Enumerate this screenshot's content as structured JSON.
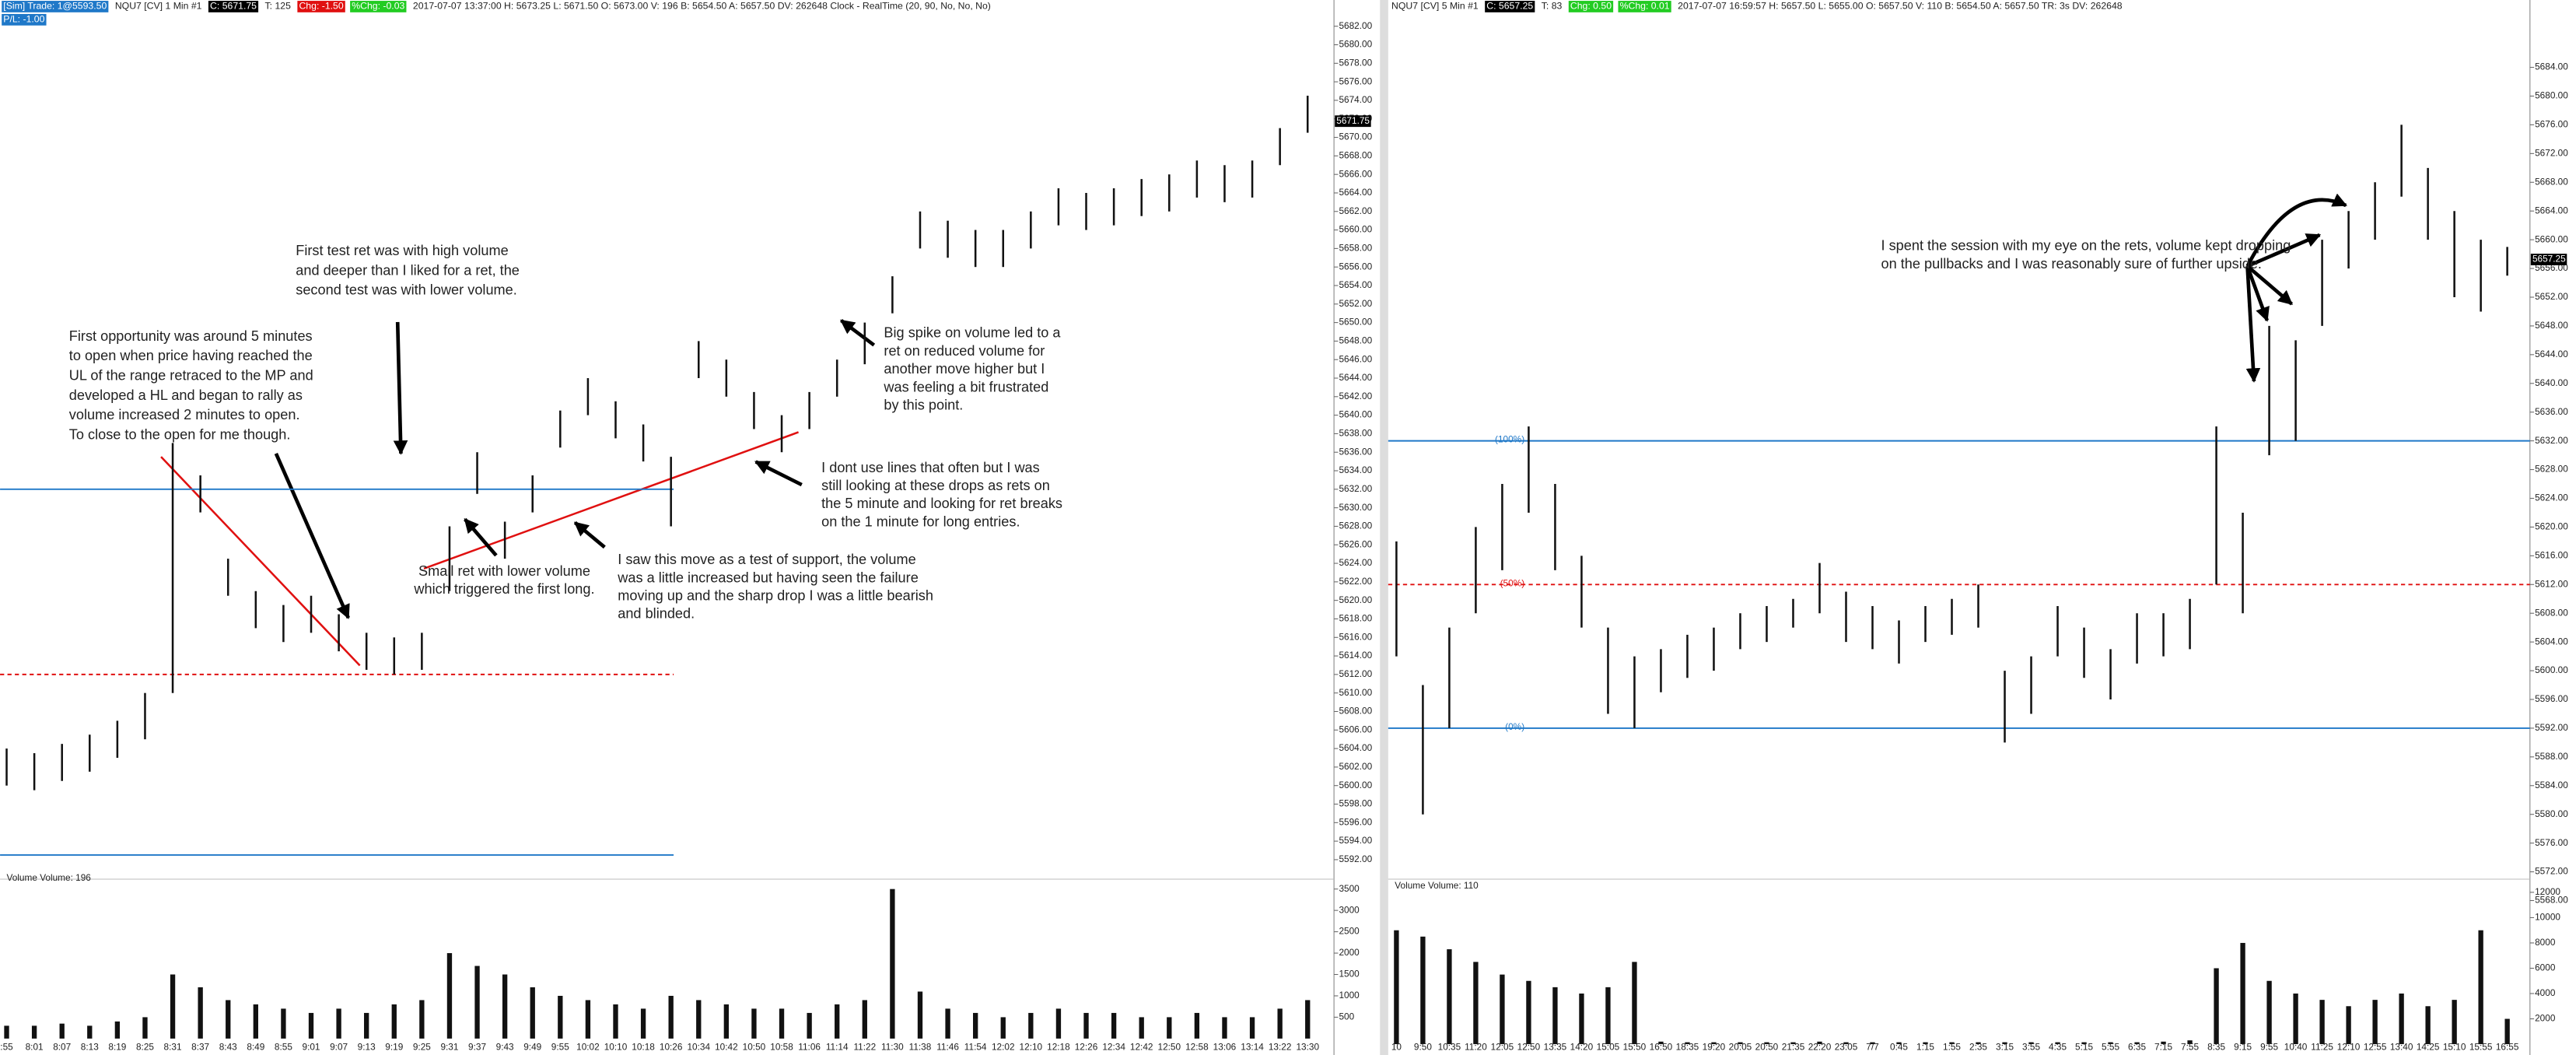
{
  "chart_data": [
    {
      "type": "ohlc",
      "header": [
        {
          "text": "[Sim] Trade: 1@5593.50",
          "bg": "#1f78c8"
        },
        {
          "text": "NQU7 [CV]  1 Min  #1"
        },
        {
          "text": "C: 5671.75",
          "bg": "#000000"
        },
        {
          "text": "T: 125"
        },
        {
          "text": "Chg: -1.50",
          "bg": "#e01010"
        },
        {
          "text": "%Chg: -0.03",
          "bg": "#22cc22"
        },
        {
          "text": "2017-07-07 13:37:00  H: 5673.25  L: 5671.50  O: 5673.00  V: 196  B: 5654.50  A: 5657.50  DV: 262648  Clock - RealTime  (20, 90, No, No, No)"
        }
      ],
      "subheader": {
        "text": "P/L: -1.00",
        "bg": "#1f78c8"
      },
      "x": [
        ":55",
        "8:01",
        "8:07",
        "8:13",
        "8:19",
        "8:25",
        "8:31",
        "8:37",
        "8:43",
        "8:49",
        "8:55",
        "9:01",
        "9:07",
        "9:13",
        "9:19",
        "9:25",
        "9:31",
        "9:37",
        "9:43",
        "9:49",
        "9:55",
        "10:02",
        "10:10",
        "10:18",
        "10:26",
        "10:34",
        "10:42",
        "10:50",
        "10:58",
        "11:06",
        "11:14",
        "11:22",
        "11:30",
        "11:38",
        "11:46",
        "11:54",
        "12:02",
        "12:10",
        "12:18",
        "12:26",
        "12:34",
        "12:42",
        "12:50",
        "12:58",
        "13:06",
        "13:14",
        "13:22",
        "13:30"
      ],
      "highs": [
        5604,
        5603.5,
        5604.5,
        5605.5,
        5607,
        5610,
        5637,
        5633.5,
        5624.5,
        5621,
        5619.5,
        5620.5,
        5618.5,
        5616.5,
        5616,
        5616.5,
        5628,
        5636,
        5628.5,
        5633.5,
        5640.5,
        5644,
        5641.5,
        5639,
        5635.5,
        5648,
        5646,
        5642.5,
        5640,
        5642.5,
        5646,
        5650,
        5655,
        5662,
        5661,
        5660,
        5660,
        5662,
        5664.5,
        5664,
        5664.5,
        5665.5,
        5666,
        5667.5,
        5667,
        5667.5,
        5671,
        5674.5
      ],
      "lows": [
        5600,
        5599.5,
        5600.5,
        5601.5,
        5603,
        5605,
        5610,
        5629.5,
        5620.5,
        5617,
        5615.5,
        5616.5,
        5614.5,
        5612.5,
        5612,
        5612.5,
        5621,
        5631.5,
        5624.5,
        5629.5,
        5636.5,
        5640,
        5637.5,
        5635,
        5628,
        5644,
        5642,
        5638.5,
        5636,
        5638.5,
        5642,
        5645.5,
        5651,
        5658,
        5657,
        5656,
        5656,
        5658,
        5660.5,
        5660,
        5660.5,
        5661.5,
        5662,
        5663.5,
        5663,
        5663.5,
        5667,
        5670.5
      ],
      "color": "#111111",
      "ylim": [
        5590,
        5684
      ],
      "yticks": [
        {
          "value": 5682,
          "label": "5682.00"
        },
        {
          "value": 5680,
          "label": "5680.00"
        },
        {
          "value": 5678,
          "label": "5678.00"
        },
        {
          "value": 5676,
          "label": "5676.00"
        },
        {
          "value": 5674,
          "label": "5674.00"
        },
        {
          "value": 5672,
          "label": "5672.00"
        },
        {
          "value": 5670,
          "label": "5670.00"
        },
        {
          "value": 5668,
          "label": "5668.00"
        },
        {
          "value": 5666,
          "label": "5666.00"
        },
        {
          "value": 5664,
          "label": "5664.00"
        },
        {
          "value": 5662,
          "label": "5662.00"
        },
        {
          "value": 5660,
          "label": "5660.00"
        },
        {
          "value": 5658,
          "label": "5658.00"
        },
        {
          "value": 5656,
          "label": "5656.00"
        },
        {
          "value": 5654,
          "label": "5654.00"
        },
        {
          "value": 5652,
          "label": "5652.00"
        },
        {
          "value": 5650,
          "label": "5650.00"
        },
        {
          "value": 5648,
          "label": "5648.00"
        },
        {
          "value": 5646,
          "label": "5646.00"
        },
        {
          "value": 5644,
          "label": "5644.00"
        },
        {
          "value": 5642,
          "label": "5642.00"
        },
        {
          "value": 5640,
          "label": "5640.00"
        },
        {
          "value": 5638,
          "label": "5638.00"
        },
        {
          "value": 5636,
          "label": "5636.00"
        },
        {
          "value": 5634,
          "label": "5634.00"
        },
        {
          "value": 5632,
          "label": "5632.00"
        },
        {
          "value": 5630,
          "label": "5630.00"
        },
        {
          "value": 5628,
          "label": "5628.00"
        },
        {
          "value": 5626,
          "label": "5626.00"
        },
        {
          "value": 5624,
          "label": "5624.00"
        },
        {
          "value": 5622,
          "label": "5622.00"
        },
        {
          "value": 5620,
          "label": "5620.00"
        },
        {
          "value": 5618,
          "label": "5618.00"
        },
        {
          "value": 5616,
          "label": "5616.00"
        },
        {
          "value": 5614,
          "label": "5614.00"
        },
        {
          "value": 5612,
          "label": "5612.00"
        },
        {
          "value": 5610,
          "label": "5610.00"
        },
        {
          "value": 5608,
          "label": "5608.00"
        },
        {
          "value": 5606,
          "label": "5606.00"
        },
        {
          "value": 5604,
          "label": "5604.00"
        },
        {
          "value": 5602,
          "label": "5602.00"
        },
        {
          "value": 5600,
          "label": "5600.00"
        },
        {
          "value": 5598,
          "label": "5598.00"
        },
        {
          "value": 5596,
          "label": "5596.00"
        },
        {
          "value": 5594,
          "label": "5594.00"
        },
        {
          "value": 5592,
          "label": "5592.00"
        }
      ],
      "last_price": 5671.75,
      "levels": [
        {
          "value": 5632,
          "color": "#1f78c8",
          "dashed": false
        },
        {
          "value": 5612,
          "color": "#e01010",
          "dashed": true
        },
        {
          "value": 5592.5,
          "color": "#1f78c8",
          "dashed": false
        }
      ],
      "volume": {
        "label": "Volume  Volume: 196",
        "color": "#111111",
        "values": [
          300,
          300,
          350,
          300,
          400,
          500,
          1500,
          1200,
          900,
          800,
          700,
          600,
          700,
          600,
          800,
          900,
          2000,
          1700,
          1500,
          1200,
          1000,
          900,
          800,
          700,
          1000,
          900,
          800,
          700,
          700,
          600,
          800,
          900,
          3500,
          1100,
          700,
          600,
          500,
          600,
          700,
          600,
          600,
          500,
          500,
          600,
          500,
          500,
          700,
          900
        ],
        "ylim": [
          0,
          3600
        ],
        "yticks": [
          500,
          1000,
          1500,
          2000,
          2500,
          3000,
          3500
        ]
      },
      "annotations": [
        {
          "lines": [
            "First opportunity was around 5 minutes",
            "to open when price having reached the",
            "UL of the range retraced to the MP and",
            "developed a HL and began to rally as",
            "volume increased 2 minutes to open.",
            "To close to the open for me though."
          ]
        },
        {
          "lines": [
            "First test ret was with high volume",
            "and deeper than I liked for a ret, the",
            "second test was with lower volume."
          ]
        },
        {
          "lines": [
            "Small ret with lower volume",
            "which triggered the first long."
          ]
        },
        {
          "lines": [
            "I saw this move as a test of support, the volume",
            "was a little increased but having seen the failure",
            "moving up and the sharp drop I was a little bearish",
            "and blinded."
          ]
        },
        {
          "lines": [
            "I dont use lines that often but I was",
            "still looking at these drops as rets on",
            "the 5 minute and looking for ret breaks",
            "on the 1 minute for long entries."
          ]
        },
        {
          "lines": [
            "Big spike on volume led to a",
            "ret on reduced volume for",
            "another move higher but I",
            "was  feeling a bit  frustrated",
            "by this point."
          ]
        }
      ]
    },
    {
      "type": "ohlc",
      "header": [
        {
          "text": "NQU7 [CV]  5 Min  #1"
        },
        {
          "text": "C: 5657.25",
          "bg": "#000000"
        },
        {
          "text": "T: 83"
        },
        {
          "text": "Chg: 0.50",
          "bg": "#22cc22"
        },
        {
          "text": "%Chg: 0.01",
          "bg": "#22cc22"
        },
        {
          "text": "2017-07-07 16:59:57  H: 5657.50  L: 5655.00  O: 5657.50  V: 110  B: 5654.50  A: 5657.50  TR: 3s  DV: 262648"
        }
      ],
      "x": [
        "10",
        "9:50",
        "10:35",
        "11:20",
        "12:05",
        "12:50",
        "13:35",
        "14:20",
        "15:05",
        "15:50",
        "16:50",
        "18:35",
        "19:20",
        "20:05",
        "20:50",
        "21:35",
        "22:20",
        "23:05",
        "7/7",
        "0:45",
        "1:15",
        "1:55",
        "2:35",
        "3:15",
        "3:55",
        "4:35",
        "5:15",
        "5:55",
        "6:35",
        "7:15",
        "7:55",
        "8:35",
        "9:15",
        "9:55",
        "10:40",
        "11:25",
        "12:10",
        "12:55",
        "13:40",
        "14:25",
        "15:10",
        "15:55",
        "16:55"
      ],
      "highs": [
        5618,
        5598,
        5606,
        5620,
        5626,
        5634,
        5626,
        5616,
        5606,
        5602,
        5603,
        5605,
        5606,
        5608,
        5609,
        5610,
        5615,
        5611,
        5609,
        5607,
        5609,
        5610,
        5612,
        5600,
        5602,
        5609,
        5606,
        5603,
        5608,
        5608,
        5610,
        5634,
        5622,
        5648,
        5646,
        5660,
        5664,
        5668,
        5676,
        5670,
        5664,
        5660,
        5659
      ],
      "lows": [
        5602,
        5580,
        5592,
        5608,
        5614,
        5622,
        5614,
        5606,
        5594,
        5592,
        5597,
        5599,
        5600,
        5603,
        5604,
        5606,
        5608,
        5604,
        5603,
        5601,
        5604,
        5605,
        5606,
        5590,
        5594,
        5602,
        5599,
        5596,
        5601,
        5602,
        5603,
        5612,
        5608,
        5630,
        5632,
        5648,
        5656,
        5660,
        5666,
        5660,
        5652,
        5650,
        5655
      ],
      "color": "#111111",
      "ylim": [
        5564,
        5688
      ],
      "yticks": [
        {
          "value": 5684,
          "label": "5684.00"
        },
        {
          "value": 5680,
          "label": "5680.00"
        },
        {
          "value": 5676,
          "label": "5676.00"
        },
        {
          "value": 5672,
          "label": "5672.00"
        },
        {
          "value": 5668,
          "label": "5668.00"
        },
        {
          "value": 5664,
          "label": "5664.00"
        },
        {
          "value": 5660,
          "label": "5660.00"
        },
        {
          "value": 5656,
          "label": "5656.00"
        },
        {
          "value": 5652,
          "label": "5652.00"
        },
        {
          "value": 5648,
          "label": "5648.00"
        },
        {
          "value": 5644,
          "label": "5644.00"
        },
        {
          "value": 5640,
          "label": "5640.00"
        },
        {
          "value": 5636,
          "label": "5636.00"
        },
        {
          "value": 5632,
          "label": "5632.00"
        },
        {
          "value": 5628,
          "label": "5628.00"
        },
        {
          "value": 5624,
          "label": "5624.00"
        },
        {
          "value": 5620,
          "label": "5620.00"
        },
        {
          "value": 5616,
          "label": "5616.00"
        },
        {
          "value": 5612,
          "label": "5612.00"
        },
        {
          "value": 5608,
          "label": "5608.00"
        },
        {
          "value": 5604,
          "label": "5604.00"
        },
        {
          "value": 5600,
          "label": "5600.00"
        },
        {
          "value": 5596,
          "label": "5596.00"
        },
        {
          "value": 5592,
          "label": "5592.00"
        },
        {
          "value": 5588,
          "label": "5588.00"
        },
        {
          "value": 5584,
          "label": "5584.00"
        },
        {
          "value": 5580,
          "label": "5580.00"
        },
        {
          "value": 5576,
          "label": "5576.00"
        },
        {
          "value": 5572,
          "label": "5572.00"
        },
        {
          "value": 5568,
          "label": "5568.00"
        }
      ],
      "last_price": 5657.25,
      "levels": [
        {
          "value": 5632,
          "color": "#1f78c8",
          "dashed": false,
          "label": "(100%)"
        },
        {
          "value": 5612,
          "color": "#e01010",
          "dashed": true,
          "label": "(50%)"
        },
        {
          "value": 5592,
          "color": "#1f78c8",
          "dashed": false,
          "label": "(0%)"
        }
      ],
      "volume": {
        "label": "Volume  Volume: 110",
        "color": "#111111",
        "values": [
          9000,
          8500,
          7500,
          6500,
          5500,
          5000,
          4500,
          4000,
          4500,
          6500,
          200,
          150,
          150,
          150,
          150,
          150,
          200,
          150,
          150,
          150,
          150,
          150,
          150,
          150,
          150,
          150,
          150,
          150,
          150,
          200,
          300,
          6000,
          8000,
          5000,
          4000,
          3500,
          3000,
          3500,
          4000,
          3000,
          3500,
          9000,
          2000
        ],
        "ylim": [
          0,
          13000
        ],
        "yticks": [
          2000,
          4000,
          6000,
          8000,
          10000,
          12000
        ]
      },
      "annotations": [
        {
          "lines": [
            "I spent the session with my eye on the rets, volume kept dropping",
            "on the pullbacks and I was reasonably sure of further upside."
          ]
        }
      ]
    }
  ]
}
